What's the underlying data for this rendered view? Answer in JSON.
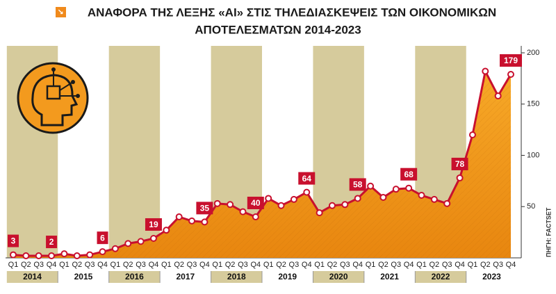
{
  "chart_data": {
    "type": "area",
    "title_lines": [
      "ΑΝΑΦΟΡΑ ΤΗΣ ΛΕΞΗΣ «AI» ΣΤΙΣ ΤΗΛΕΔΙΑΣΚΕΨΕΙΣ ΤΩΝ ΟΙΚΟΝΟΜΙΚΩΝ",
      "ΑΠΟΤΕΛΕΣΜΑΤΩΝ 2014-2023"
    ],
    "source": "ΠΗΓΗ: FACTSET",
    "categories": [
      "Q1",
      "Q2",
      "Q3",
      "Q4",
      "Q1",
      "Q2",
      "Q3",
      "Q4",
      "Q1",
      "Q2",
      "Q3",
      "Q4",
      "Q1",
      "Q2",
      "Q3",
      "Q4",
      "Q1",
      "Q2",
      "Q3",
      "Q4",
      "Q1",
      "Q2",
      "Q3",
      "Q4",
      "Q1",
      "Q2",
      "Q3",
      "Q4",
      "Q1",
      "Q2",
      "Q3",
      "Q4",
      "Q1",
      "Q2",
      "Q3",
      "Q4",
      "Q1",
      "Q2",
      "Q3",
      "Q4"
    ],
    "years": [
      "2014",
      "2015",
      "2016",
      "2017",
      "2018",
      "2019",
      "2020",
      "2021",
      "2022",
      "2023"
    ],
    "series": [
      {
        "color": "#c8102e",
        "values": [
          3,
          2,
          2,
          2,
          4,
          2,
          3,
          6,
          9,
          14,
          16,
          19,
          27,
          40,
          36,
          35,
          53,
          52,
          45,
          40,
          58,
          51,
          57,
          64,
          44,
          51,
          52,
          58,
          70,
          59,
          67,
          68,
          61,
          57,
          53,
          78,
          120,
          182,
          158,
          179
        ]
      }
    ],
    "labeled_points": [
      0,
      3,
      7,
      11,
      15,
      19,
      23,
      27,
      31,
      35,
      39
    ],
    "area_color": "#f5a21f",
    "band_color": "#d6cb9c",
    "ylim": [
      0,
      200
    ],
    "yticks": [
      50,
      100,
      150,
      200
    ]
  }
}
